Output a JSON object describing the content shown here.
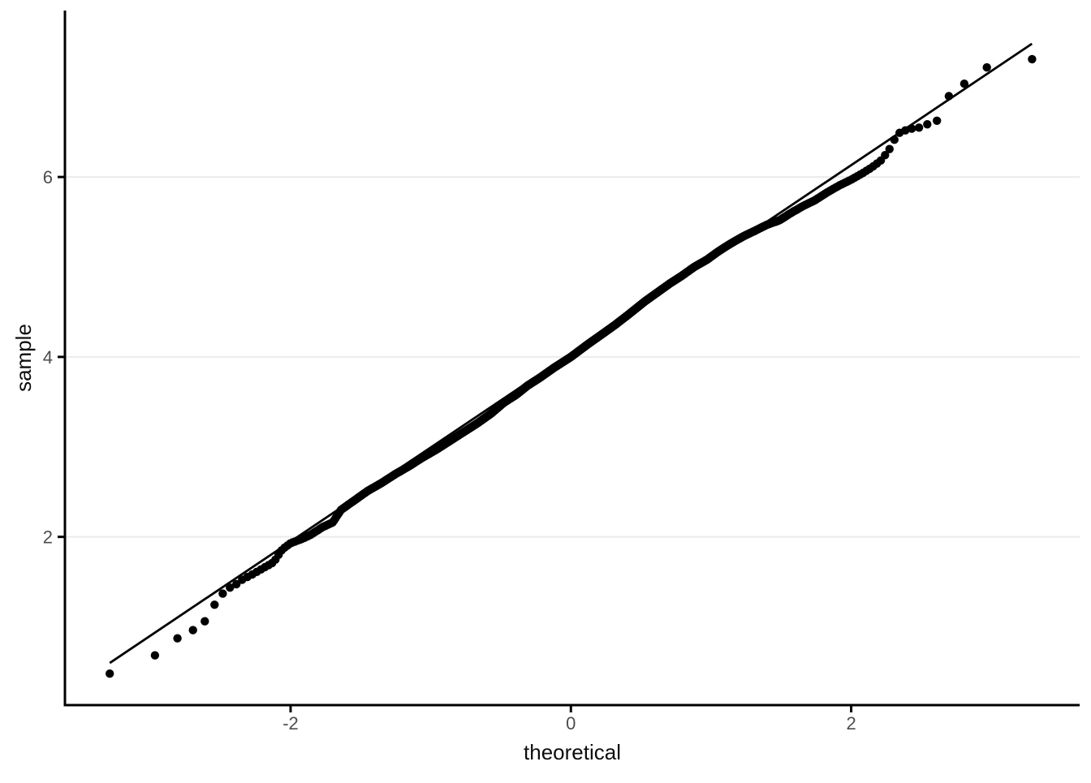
{
  "chart_data": {
    "type": "scatter",
    "subtype": "normal-qq-plot",
    "title": "",
    "xlabel": "theoretical",
    "ylabel": "sample",
    "x_ticks": [
      -2,
      0,
      2
    ],
    "x_tick_labels": [
      "-2",
      "0",
      "2"
    ],
    "y_ticks": [
      2,
      4,
      6
    ],
    "y_tick_labels": [
      "2",
      "4",
      "6"
    ],
    "x_range": [
      -3.61,
      3.63
    ],
    "y_range": [
      0.13,
      7.85
    ],
    "grid": "horizontal-major-only",
    "legend": "none",
    "n_points": 1000,
    "reference_line": {
      "slope": 1.046,
      "intercept": 4.04,
      "t_min": -3.29,
      "t_max": 3.29
    },
    "quantile_anchors": [
      [
        -3.29,
        0.48
      ],
      [
        -2.97,
        0.68
      ],
      [
        -2.81,
        0.87
      ],
      [
        -2.7,
        0.96
      ],
      [
        -2.62,
        1.04
      ],
      [
        -2.55,
        1.23
      ],
      [
        -2.49,
        1.36
      ],
      [
        -2.44,
        1.43
      ],
      [
        -2.39,
        1.47
      ],
      [
        -2.35,
        1.52
      ],
      [
        -2.3,
        1.56
      ],
      [
        -2.22,
        1.63
      ],
      [
        -2.12,
        1.72
      ],
      [
        -2.06,
        1.86
      ],
      [
        -2.0,
        1.93
      ],
      [
        -1.93,
        1.97
      ],
      [
        -1.86,
        2.02
      ],
      [
        -1.77,
        2.11
      ],
      [
        -1.7,
        2.16
      ],
      [
        -1.64,
        2.3
      ],
      [
        -1.55,
        2.4
      ],
      [
        -1.45,
        2.51
      ],
      [
        -1.35,
        2.6
      ],
      [
        -1.25,
        2.7
      ],
      [
        -1.15,
        2.79
      ],
      [
        -1.06,
        2.88
      ],
      [
        -0.96,
        2.97
      ],
      [
        -0.87,
        3.06
      ],
      [
        -0.77,
        3.16
      ],
      [
        -0.67,
        3.26
      ],
      [
        -0.57,
        3.37
      ],
      [
        -0.48,
        3.49
      ],
      [
        -0.39,
        3.58
      ],
      [
        -0.31,
        3.68
      ],
      [
        -0.22,
        3.77
      ],
      [
        -0.12,
        3.88
      ],
      [
        0.0,
        4.0
      ],
      [
        0.12,
        4.14
      ],
      [
        0.22,
        4.25
      ],
      [
        0.31,
        4.35
      ],
      [
        0.41,
        4.47
      ],
      [
        0.53,
        4.62
      ],
      [
        0.62,
        4.72
      ],
      [
        0.71,
        4.82
      ],
      [
        0.79,
        4.9
      ],
      [
        0.88,
        5.0
      ],
      [
        0.97,
        5.08
      ],
      [
        1.05,
        5.17
      ],
      [
        1.14,
        5.26
      ],
      [
        1.23,
        5.34
      ],
      [
        1.31,
        5.4
      ],
      [
        1.4,
        5.47
      ],
      [
        1.49,
        5.52
      ],
      [
        1.57,
        5.6
      ],
      [
        1.66,
        5.68
      ],
      [
        1.74,
        5.74
      ],
      [
        1.83,
        5.83
      ],
      [
        1.92,
        5.91
      ],
      [
        2.0,
        5.97
      ],
      [
        2.09,
        6.05
      ],
      [
        2.15,
        6.11
      ],
      [
        2.21,
        6.18
      ],
      [
        2.27,
        6.3
      ],
      [
        2.31,
        6.42
      ],
      [
        2.35,
        6.5
      ],
      [
        2.39,
        6.52
      ],
      [
        2.44,
        6.54
      ],
      [
        2.49,
        6.55
      ],
      [
        2.55,
        6.59
      ],
      [
        2.62,
        6.63
      ],
      [
        2.7,
        6.91
      ],
      [
        2.81,
        7.04
      ],
      [
        2.97,
        7.22
      ],
      [
        3.29,
        7.31
      ]
    ],
    "colors": {
      "background": "#ffffff",
      "point": "#000000",
      "reference_line": "#000000",
      "axis_line": "#000000",
      "tick_label": "#4d4d4d",
      "axis_title": "#0d0d0d",
      "gridline": "#ebebeb"
    }
  }
}
